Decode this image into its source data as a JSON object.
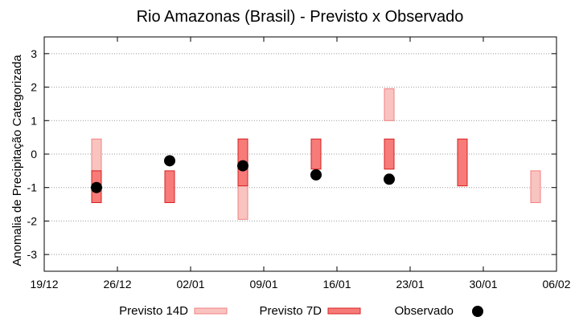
{
  "chart_data": {
    "type": "scatter",
    "title": "Rio Amazonas (Brasil) - Previsto x Observado",
    "xlabel": "",
    "ylabel": "Anomalia de Precipitação Categorizada",
    "x_tick_labels": [
      "19/12",
      "26/12",
      "02/01",
      "09/01",
      "16/01",
      "23/01",
      "30/01",
      "06/02"
    ],
    "x_tick_days": [
      0,
      7,
      14,
      21,
      28,
      35,
      42,
      49
    ],
    "xlim": [
      0,
      49
    ],
    "ylim": [
      -3.5,
      3.5
    ],
    "y_ticks": [
      -3,
      -2,
      -1,
      0,
      1,
      2,
      3
    ],
    "y_tick_labels": [
      "-3",
      "-2",
      "-1",
      "0",
      "1",
      "2",
      "3"
    ],
    "grid": true,
    "series": [
      {
        "name": "Previsto 14D",
        "kind": "range-bar",
        "color_fill": "#f9c3c0",
        "color_edge": "#f08080",
        "points": [
          {
            "day": 5,
            "low": -1.45,
            "high": 0.45
          },
          {
            "day": 19,
            "low": -1.95,
            "high": 0.45
          },
          {
            "day": 33,
            "low": 1.0,
            "high": 1.95
          },
          {
            "day": 47,
            "low": -1.45,
            "high": -0.5
          }
        ]
      },
      {
        "name": "Previsto 7D",
        "kind": "range-bar",
        "color_fill": "#f77b78",
        "color_edge": "#d42020",
        "points": [
          {
            "day": 5,
            "low": -1.45,
            "high": -0.5
          },
          {
            "day": 12,
            "low": -1.45,
            "high": -0.5
          },
          {
            "day": 19,
            "low": -0.95,
            "high": 0.45
          },
          {
            "day": 26,
            "low": -0.45,
            "high": 0.45
          },
          {
            "day": 33,
            "low": -0.45,
            "high": 0.45
          },
          {
            "day": 40,
            "low": -0.95,
            "high": 0.45
          }
        ]
      },
      {
        "name": "Observado",
        "kind": "point",
        "color": "#000000",
        "points": [
          {
            "day": 5,
            "value": -1.0
          },
          {
            "day": 12,
            "value": -0.2
          },
          {
            "day": 19,
            "value": -0.35
          },
          {
            "day": 26,
            "value": -0.62
          },
          {
            "day": 33,
            "value": -0.75
          }
        ]
      }
    ],
    "legend_position": "bottom"
  }
}
